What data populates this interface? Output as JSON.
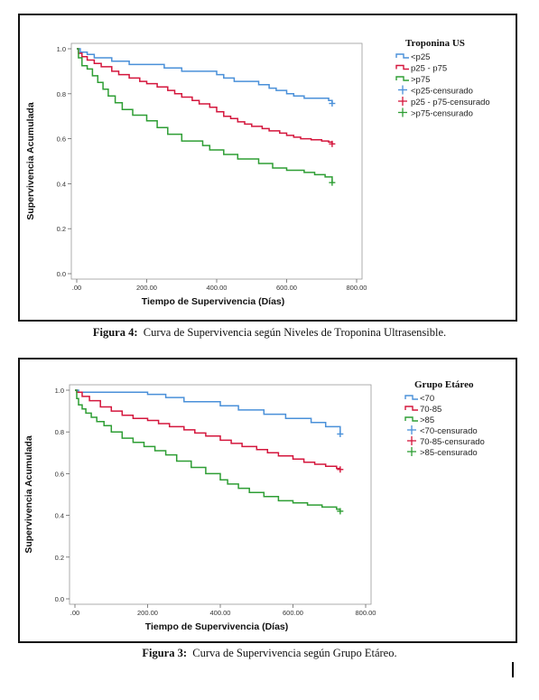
{
  "chart_data": [
    {
      "type": "line",
      "step": true,
      "xlabel": "Tiempo de Supervivencia (Días)",
      "ylabel": "Supervivencia Acumulada",
      "xticks": [
        ".00",
        "200.00",
        "400.00",
        "600.00",
        "800.00"
      ],
      "yticks": [
        "0.0",
        "0.2",
        "0.4",
        "0.6",
        "0.8",
        "1.0"
      ],
      "xlim": [
        0,
        800
      ],
      "ylim": [
        0,
        1
      ],
      "grid": false,
      "legend_title": "Troponina US",
      "legend_position": "right",
      "legend": [
        "<p25",
        "p25 - p75",
        ">p75",
        "<p25-censurado",
        "p25 - p75-censurado",
        ">p75-censurado"
      ],
      "caption_label": "Figura 4:",
      "caption_text": "Curva de Supervivencia según Niveles de Troponina Ultrasensible.",
      "series": [
        {
          "name": "<p25",
          "color": "#4a90d9",
          "x": [
            0,
            10,
            30,
            50,
            100,
            150,
            250,
            300,
            400,
            420,
            450,
            520,
            550,
            570,
            600,
            620,
            650,
            720,
            730
          ],
          "y": [
            1.0,
            0.985,
            0.975,
            0.96,
            0.945,
            0.93,
            0.915,
            0.9,
            0.885,
            0.87,
            0.855,
            0.84,
            0.825,
            0.815,
            0.8,
            0.79,
            0.78,
            0.77,
            0.757
          ],
          "censor": [
            [
              730,
              0.757
            ]
          ]
        },
        {
          "name": "p25 - p75",
          "color": "#d4163c",
          "x": [
            0,
            5,
            15,
            30,
            50,
            70,
            100,
            120,
            150,
            180,
            200,
            230,
            260,
            280,
            300,
            330,
            350,
            380,
            400,
            420,
            440,
            460,
            480,
            500,
            530,
            550,
            580,
            600,
            620,
            640,
            670,
            700,
            720,
            730
          ],
          "y": [
            1.0,
            0.98,
            0.965,
            0.95,
            0.935,
            0.92,
            0.9,
            0.885,
            0.87,
            0.855,
            0.845,
            0.83,
            0.815,
            0.8,
            0.785,
            0.77,
            0.755,
            0.74,
            0.72,
            0.7,
            0.69,
            0.675,
            0.665,
            0.655,
            0.645,
            0.635,
            0.625,
            0.615,
            0.607,
            0.6,
            0.595,
            0.59,
            0.585,
            0.577
          ],
          "censor": [
            [
              730,
              0.577
            ]
          ]
        },
        {
          "name": ">p75",
          "color": "#2e9e34",
          "x": [
            0,
            5,
            15,
            30,
            45,
            60,
            75,
            90,
            110,
            130,
            160,
            200,
            230,
            260,
            300,
            360,
            380,
            420,
            460,
            520,
            560,
            600,
            650,
            680,
            710,
            730
          ],
          "y": [
            1.0,
            0.96,
            0.925,
            0.91,
            0.88,
            0.85,
            0.82,
            0.79,
            0.76,
            0.73,
            0.705,
            0.68,
            0.65,
            0.62,
            0.59,
            0.57,
            0.55,
            0.53,
            0.51,
            0.49,
            0.47,
            0.46,
            0.45,
            0.44,
            0.43,
            0.405
          ],
          "censor": [
            [
              730,
              0.405
            ]
          ]
        }
      ]
    },
    {
      "type": "line",
      "step": true,
      "xlabel": "Tiempo de Supervivencia (Días)",
      "ylabel": "Supervivencia Acumulada",
      "xticks": [
        ".00",
        "200.00",
        "400.00",
        "600.00",
        "800.00"
      ],
      "yticks": [
        "0.0",
        "0.2",
        "0.4",
        "0.6",
        "0.8",
        "1.0"
      ],
      "xlim": [
        0,
        800
      ],
      "ylim": [
        0,
        1
      ],
      "grid": false,
      "legend_title": "Grupo Etáreo",
      "legend_position": "right",
      "legend": [
        "<70",
        "70-85",
        ">85",
        "<70-censurado",
        "70-85-censurado",
        ">85-censurado"
      ],
      "caption_label": "Figura 3:",
      "caption_text": "Curva de Supervivencia según Grupo Etáreo.",
      "series": [
        {
          "name": "<70",
          "color": "#4a90d9",
          "x": [
            0,
            10,
            200,
            250,
            300,
            400,
            450,
            520,
            580,
            650,
            690,
            730
          ],
          "y": [
            1.0,
            0.99,
            0.98,
            0.965,
            0.945,
            0.925,
            0.905,
            0.885,
            0.865,
            0.845,
            0.825,
            0.79
          ],
          "censor": [
            [
              730,
              0.79
            ]
          ]
        },
        {
          "name": "70-85",
          "color": "#d4163c",
          "x": [
            0,
            5,
            20,
            40,
            70,
            100,
            130,
            160,
            200,
            230,
            260,
            300,
            330,
            360,
            400,
            430,
            460,
            500,
            530,
            560,
            600,
            630,
            660,
            690,
            720,
            730
          ],
          "y": [
            1.0,
            0.99,
            0.97,
            0.95,
            0.92,
            0.9,
            0.88,
            0.865,
            0.855,
            0.84,
            0.825,
            0.81,
            0.795,
            0.78,
            0.76,
            0.745,
            0.73,
            0.715,
            0.7,
            0.685,
            0.67,
            0.655,
            0.645,
            0.635,
            0.625,
            0.62
          ],
          "censor": [
            [
              730,
              0.62
            ]
          ]
        },
        {
          "name": ">85",
          "color": "#2e9e34",
          "x": [
            0,
            5,
            10,
            20,
            30,
            45,
            60,
            80,
            100,
            130,
            160,
            190,
            220,
            250,
            280,
            320,
            360,
            400,
            420,
            450,
            480,
            520,
            560,
            600,
            640,
            680,
            720,
            730
          ],
          "y": [
            1.0,
            0.96,
            0.93,
            0.91,
            0.89,
            0.87,
            0.85,
            0.83,
            0.8,
            0.77,
            0.75,
            0.73,
            0.71,
            0.69,
            0.66,
            0.63,
            0.6,
            0.57,
            0.55,
            0.53,
            0.51,
            0.49,
            0.47,
            0.46,
            0.45,
            0.44,
            0.43,
            0.42
          ],
          "censor": [
            [
              730,
              0.42
            ]
          ]
        }
      ]
    }
  ]
}
